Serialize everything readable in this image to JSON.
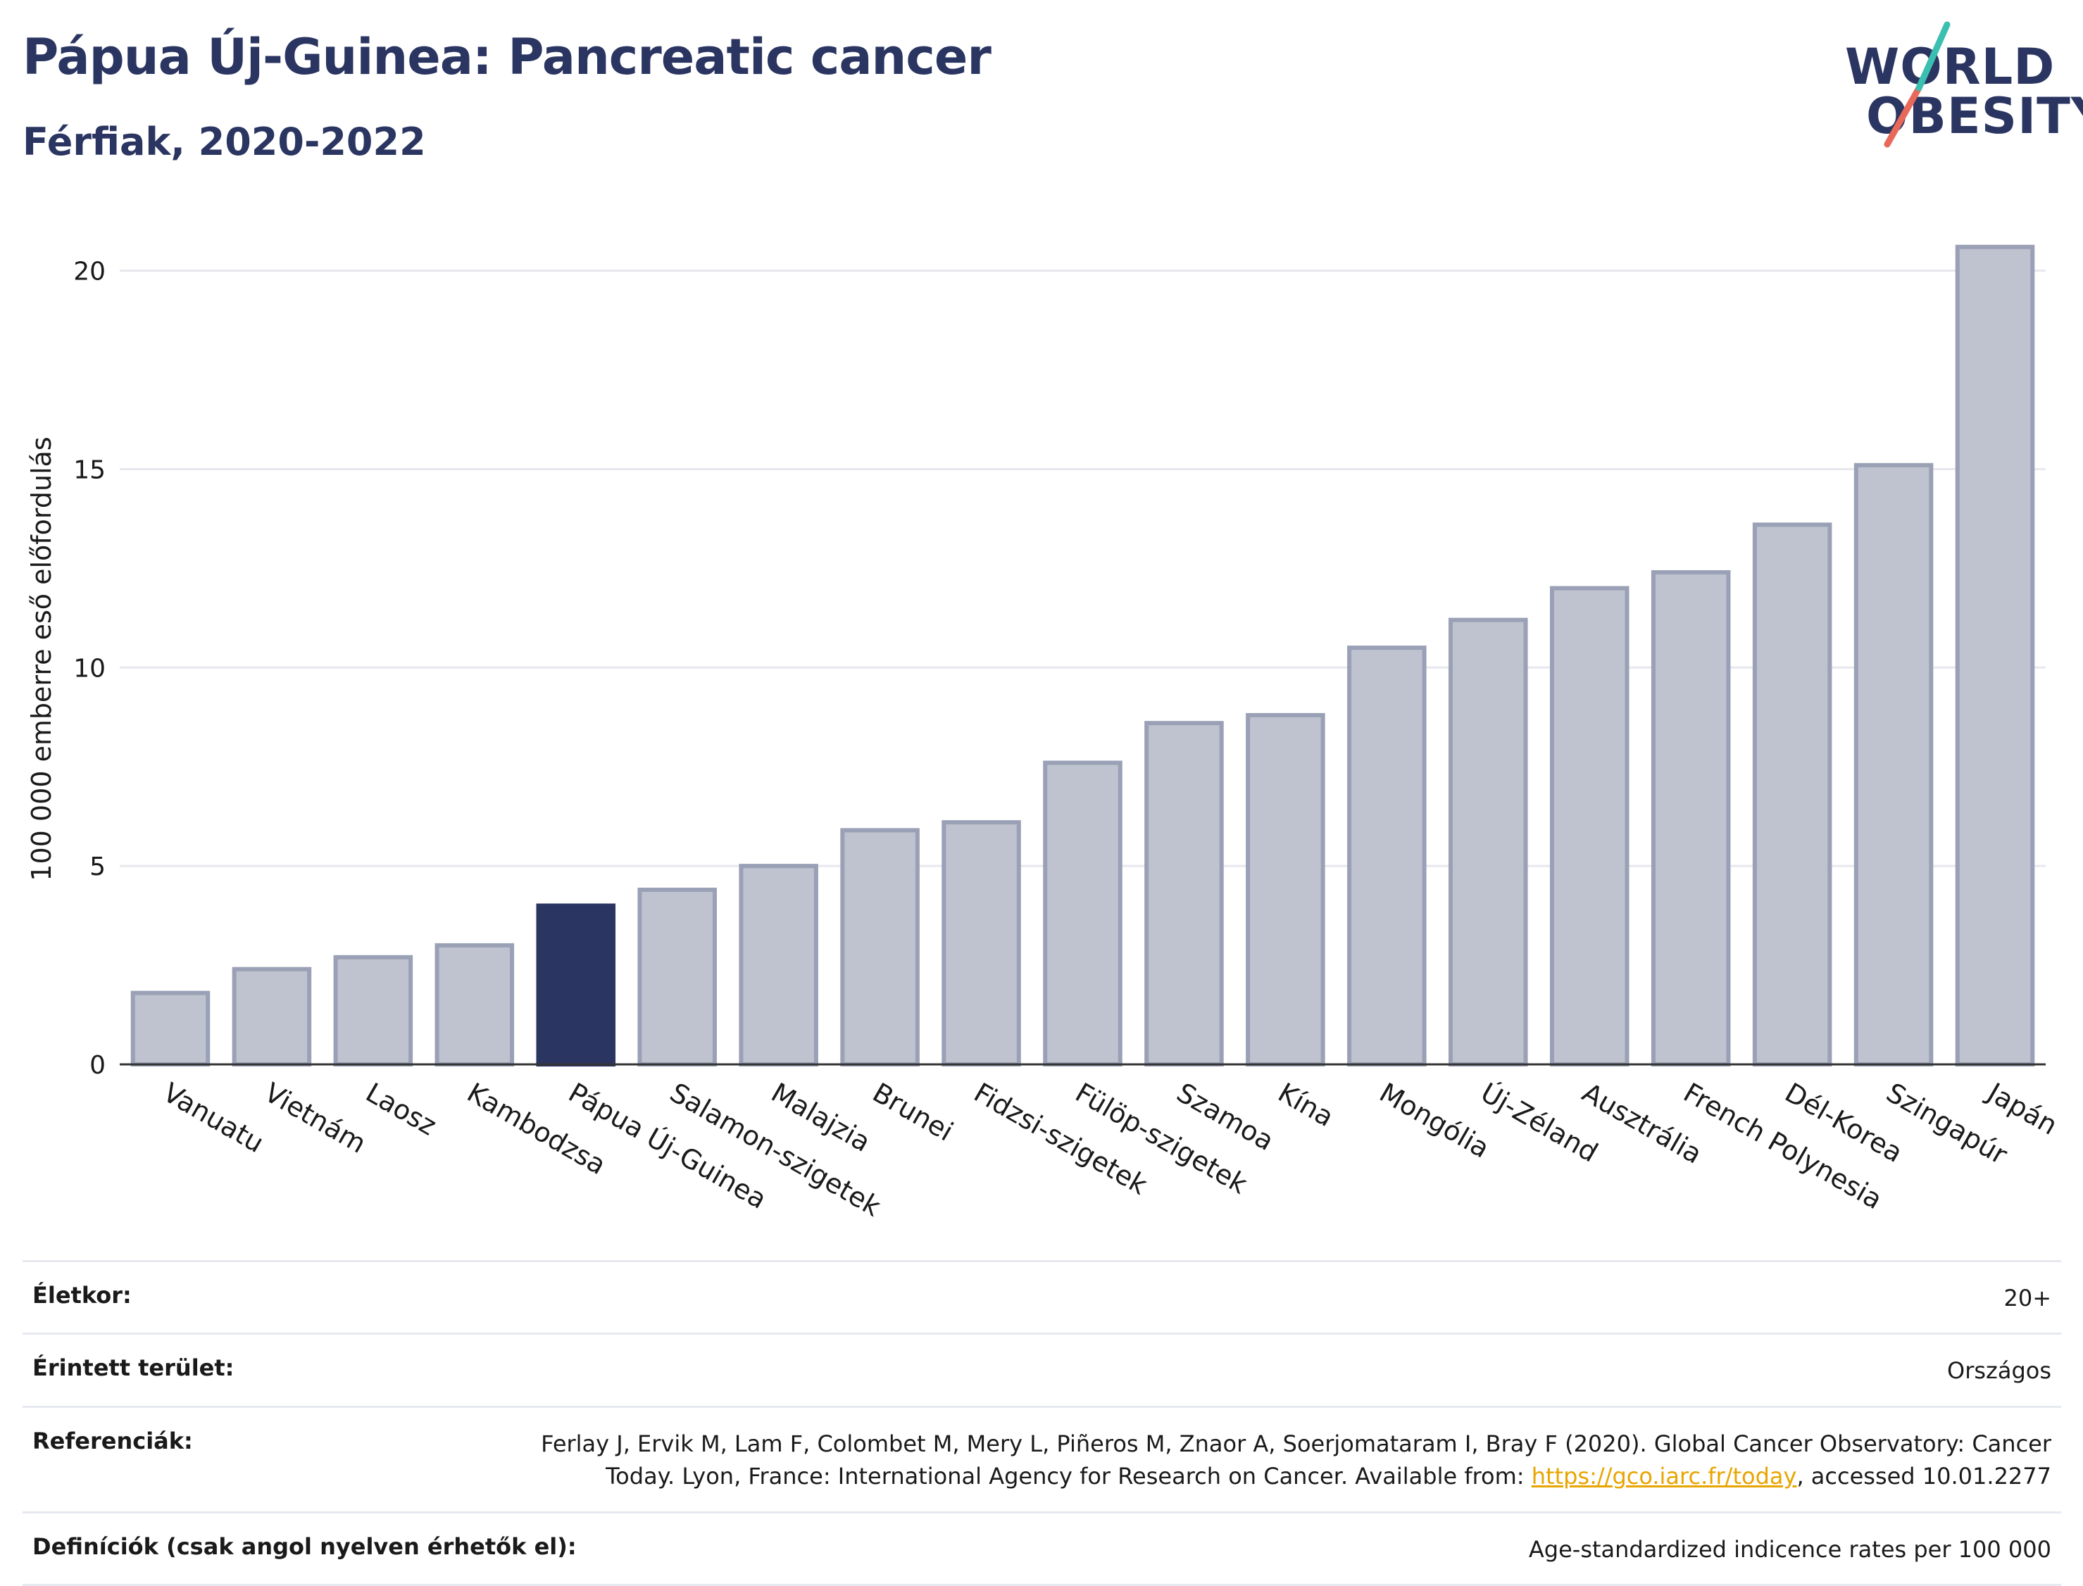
{
  "header": {
    "title": "Pápua Új-Guinea: Pancreatic cancer",
    "subtitle": "Férfiak, 2020-2022"
  },
  "logo": {
    "line1": "WORLD",
    "line2": "OBESITY"
  },
  "colors": {
    "highlight": "#2b3561",
    "bar_fill": "#bfc3cf",
    "bar_stroke": "#9aa0b5",
    "grid": "#e6e8ee"
  },
  "chart_data": {
    "type": "bar",
    "ylabel": "100 000 emberre eső előfordulás",
    "xlabel": "",
    "ylim": [
      0,
      21.5
    ],
    "yticks": [
      0,
      5,
      10,
      15,
      20
    ],
    "grid": true,
    "highlight_category": "Pápua Új-Guinea",
    "categories": [
      "Vanuatu",
      "Vietnám",
      "Laosz",
      "Kambodzsa",
      "Pápua Új-Guinea",
      "Salamon-szigetek",
      "Malajzia",
      "Brunei",
      "Fidzsi-szigetek",
      "Fülöp-szigetek",
      "Szamoa",
      "Kína",
      "Mongólia",
      "Új-Zéland",
      "Ausztrália",
      "French Polynesia",
      "Dél-Korea",
      "Szingapúr",
      "Japán"
    ],
    "values": [
      1.8,
      2.4,
      2.7,
      3.0,
      4.0,
      4.4,
      5.0,
      5.9,
      6.1,
      7.6,
      8.6,
      8.8,
      10.5,
      11.2,
      12.0,
      12.4,
      13.6,
      15.1,
      20.6
    ]
  },
  "info": {
    "age_label": "Életkor:",
    "age_value": "20+",
    "area_label": "Érintett terület:",
    "area_value": "Országos",
    "ref_label": "Referenciák:",
    "ref_text_1": "Ferlay J, Ervik M, Lam F, Colombet M, Mery L, Piñeros M, Znaor A, Soerjomataram I, Bray F (2020). Global Cancer Observatory: Cancer",
    "ref_text_2": "Today. Lyon, France: International Agency for Research on Cancer. Available from: ",
    "ref_link": "https://gco.iarc.fr/today",
    "ref_text_3": ", accessed 10.01.2277",
    "def_label": "Definíciók (csak angol nyelven érhetők el):",
    "def_value": "Age-standardized indicence rates per 100 000"
  }
}
